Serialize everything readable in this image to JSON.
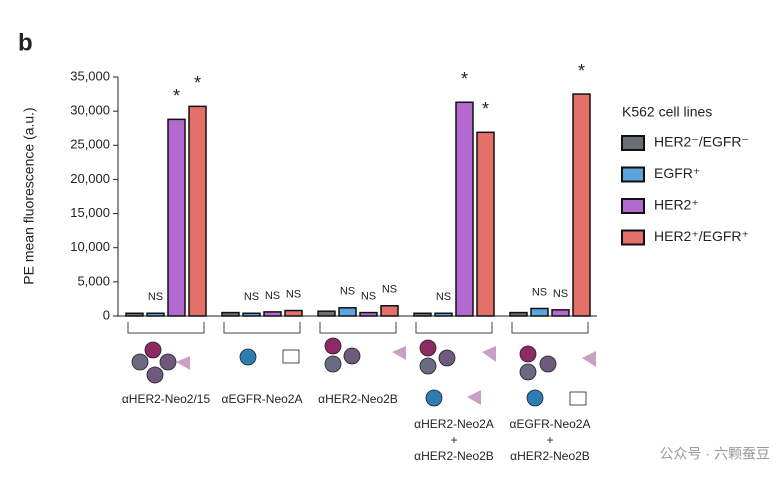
{
  "chart_data": {
    "type": "bar",
    "panel_label": "b",
    "ylabel": "PE mean fluorescence (a.u.)",
    "categories": [
      "αHER2-Neo2/15",
      "αEGFR-Neo2A",
      "αHER2-Neo2B",
      "αHER2-Neo2A\n+\nαHER2-Neo2B",
      "αEGFR-Neo2A\n+\nαHER2-Neo2B"
    ],
    "series": [
      {
        "name": "HER2⁻/EGFR⁻",
        "color": "#6b6e72",
        "values": [
          400,
          500,
          700,
          400,
          500
        ],
        "annotations": [
          null,
          null,
          null,
          null,
          null
        ]
      },
      {
        "name": "EGFR⁺",
        "color": "#5ba4dc",
        "values": [
          400,
          400,
          1200,
          400,
          1100
        ],
        "annotations": [
          "NS",
          "NS",
          "NS",
          "NS",
          "NS"
        ]
      },
      {
        "name": "HER2⁺",
        "color": "#b36ad0",
        "values": [
          28800,
          600,
          500,
          31300,
          900
        ],
        "annotations": [
          "*",
          "NS",
          "NS",
          "*",
          "NS"
        ]
      },
      {
        "name": "HER2⁺/EGFR⁺",
        "color": "#e4706a",
        "values": [
          30700,
          800,
          1500,
          26900,
          32500
        ],
        "annotations": [
          "*",
          "NS",
          "NS",
          "*",
          "*"
        ]
      }
    ],
    "legend_title": "K562 cell lines",
    "legend_position": "right",
    "ylim": [
      0,
      35000
    ],
    "yticks": [
      0,
      {
        "value": 5000,
        "label": "5,000"
      },
      {
        "value": 10000,
        "label": "10,000"
      },
      {
        "value": 15000,
        "label": "15,000"
      },
      {
        "value": 20000,
        "label": "20,000"
      },
      {
        "value": 25000,
        "label": "25,000"
      },
      {
        "value": 30000,
        "label": "30,000"
      },
      {
        "value": 35000,
        "label": "35,000"
      }
    ],
    "grid": false,
    "watermark": "公众号 · 六颗蚕豆"
  }
}
